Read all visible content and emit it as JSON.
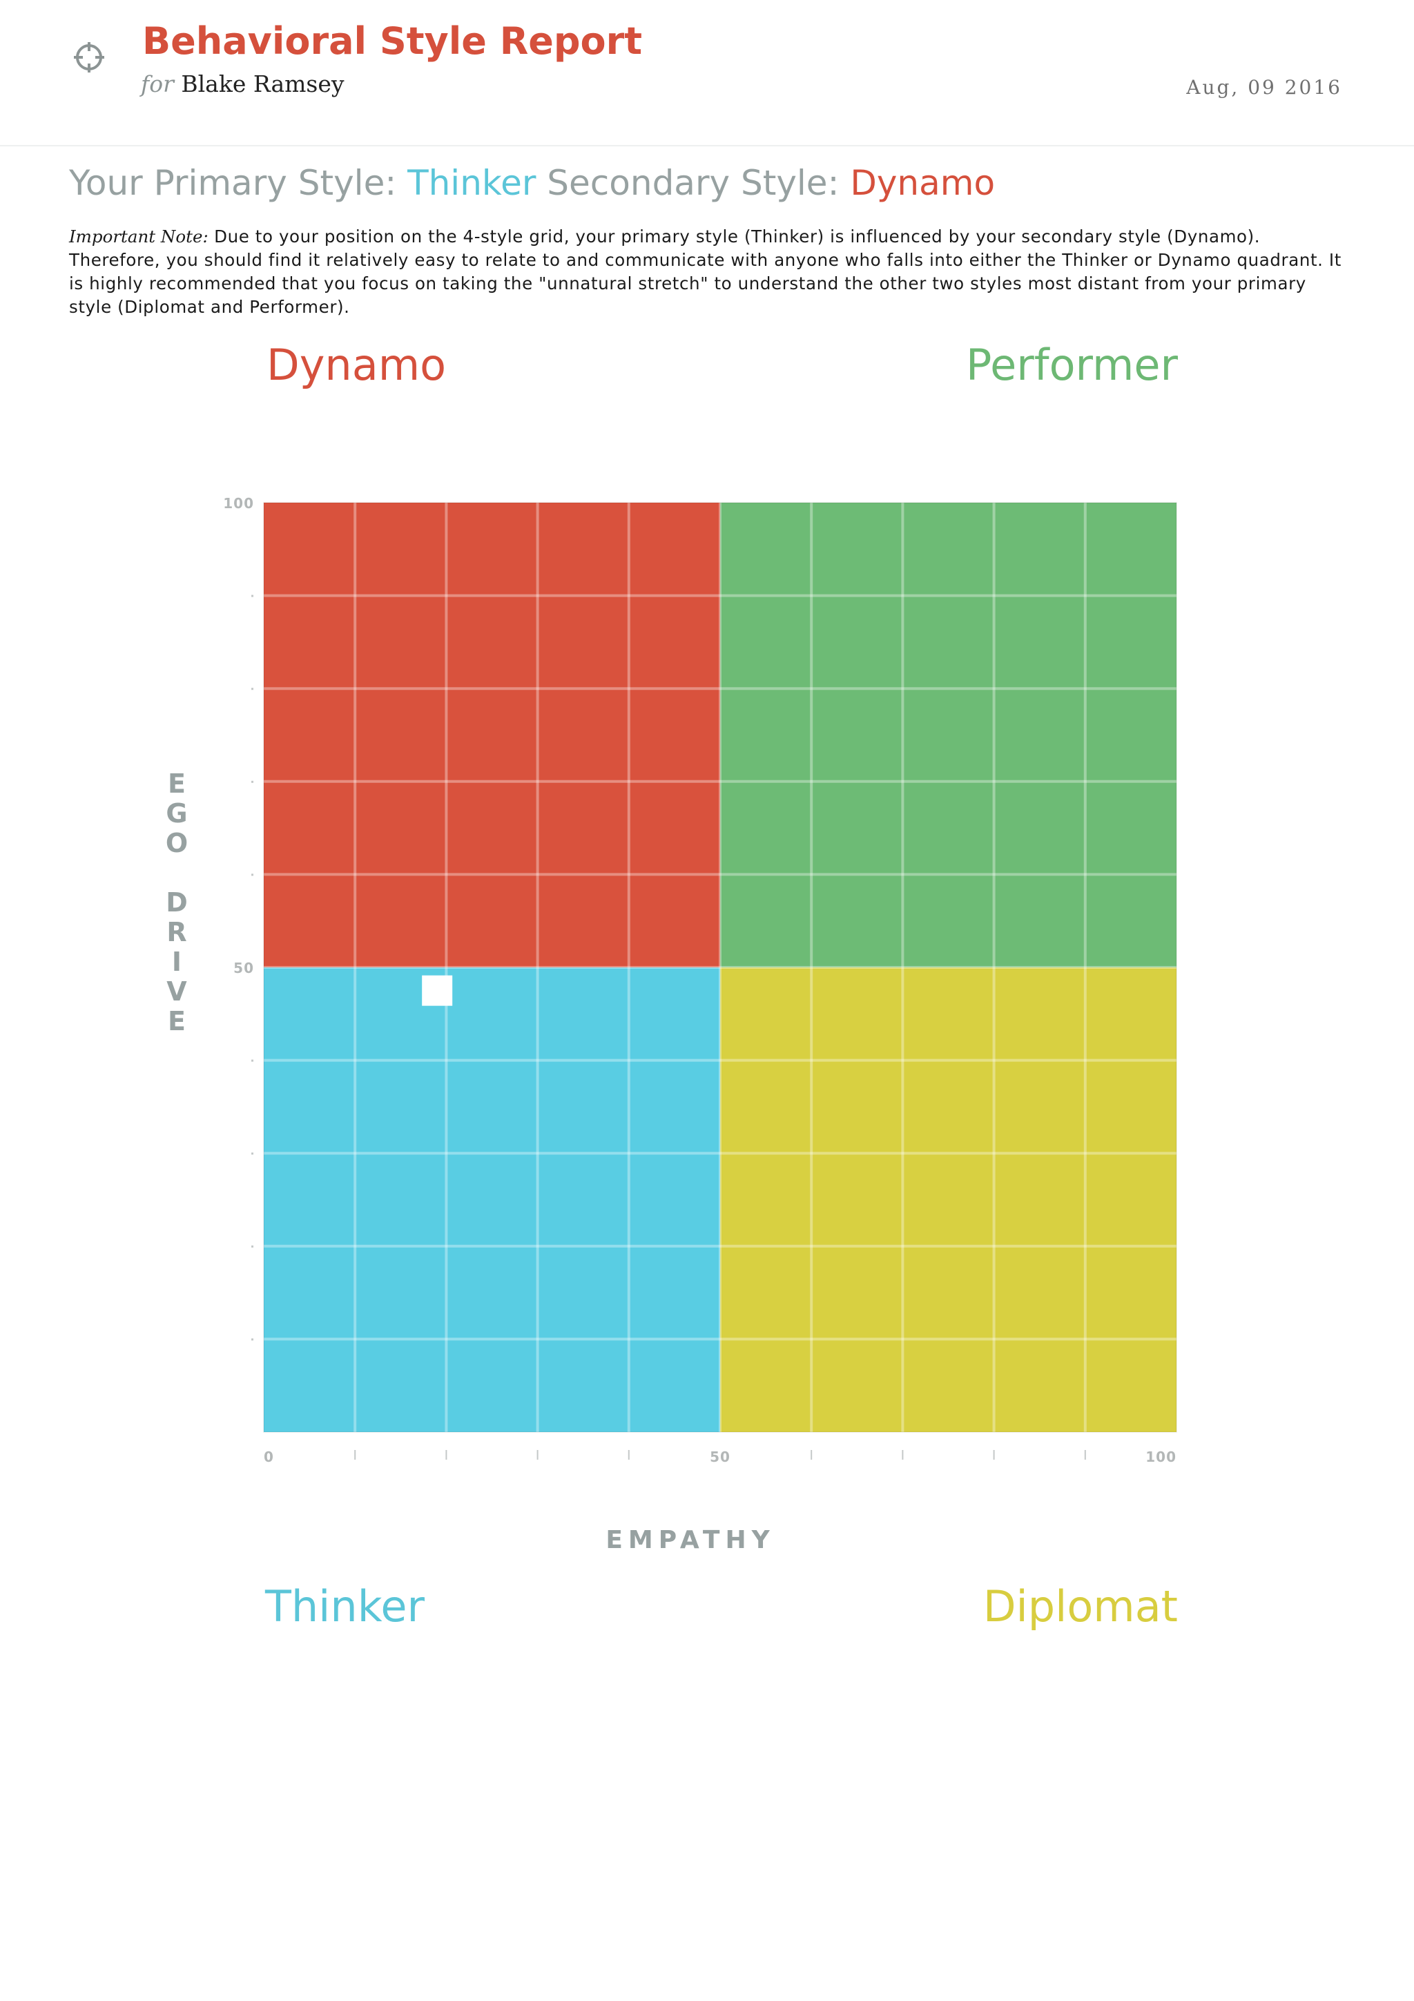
{
  "header": {
    "title": "Behavioral Style Report",
    "for_prefix": "for",
    "name": "Blake Ramsey",
    "date": "Aug, 09 2016",
    "logo_icon": "crosshair-icon"
  },
  "styles": {
    "primary_label": "Your Primary Style:",
    "primary_value": "Thinker",
    "secondary_label": "Secondary Style:",
    "secondary_value": "Dynamo"
  },
  "note": {
    "lead": "Important Note:",
    "text": "Due to your position on the 4-style grid, your primary style (Thinker) is influenced by your secondary style (Dynamo). Therefore, you should find it relatively easy to relate to and communicate with anyone who falls into either the Thinker or Dynamo quadrant. It is highly recommended that you focus on taking the \"unnatural stretch\" to understand the other two styles most distant from your primary style (Diplomat and Performer)."
  },
  "chart_data": {
    "type": "scatter",
    "xlabel": "EMPATHY",
    "ylabel": "EGO DRIVE",
    "xlim": [
      0,
      100
    ],
    "ylim": [
      0,
      100
    ],
    "x_ticks": [
      0,
      10,
      20,
      30,
      40,
      50,
      60,
      70,
      80,
      90,
      100
    ],
    "y_ticks": [
      0,
      10,
      20,
      30,
      40,
      50,
      60,
      70,
      80,
      90,
      100
    ],
    "x_tick_labels": [
      {
        "value": 0,
        "label": "0"
      },
      {
        "value": 50,
        "label": "50"
      },
      {
        "value": 100,
        "label": "100"
      }
    ],
    "y_tick_labels": [
      {
        "value": 50,
        "label": "50"
      },
      {
        "value": 100,
        "label": "100"
      }
    ],
    "grid": true,
    "quadrants": [
      {
        "name": "Dynamo",
        "x": [
          0,
          50
        ],
        "y": [
          50,
          100
        ],
        "color": "#d9523d"
      },
      {
        "name": "Performer",
        "x": [
          50,
          100
        ],
        "y": [
          50,
          100
        ],
        "color": "#6dbb75"
      },
      {
        "name": "Thinker",
        "x": [
          0,
          50
        ],
        "y": [
          0,
          50
        ],
        "color": "#59cde3"
      },
      {
        "name": "Diplomat",
        "x": [
          50,
          100
        ],
        "y": [
          0,
          50
        ],
        "color": "#d8d041"
      }
    ],
    "points": [
      {
        "x": 19,
        "y": 47.5,
        "color": "#ffffff"
      }
    ]
  }
}
